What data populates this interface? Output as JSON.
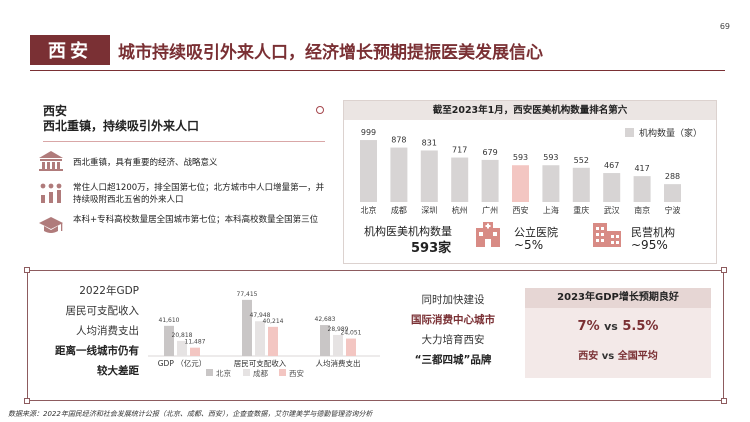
{
  "page_number": "69",
  "title_tag": "西安",
  "headline": "城市持续吸引外来人口，经济增长预期提振医美发展信心",
  "section": {
    "line1": "西安",
    "line2": "西北重镇，持续吸引外来人口"
  },
  "bullets": [
    {
      "icon": "building-icon",
      "text": "西北重镇，具有重要的经济、战略意义"
    },
    {
      "icon": "population-chart-icon",
      "text": "常住人口超1200万，排全国第七位；北方城市中人口增量第一，并持续吸附西北五省的外来人口"
    },
    {
      "icon": "graduation-cap-icon",
      "text": "本科+专科高校数量居全国城市第七位；本科高校数量全国第三位"
    }
  ],
  "colors": {
    "brand": "#7a3034",
    "bar_grey": "#d7d4d4",
    "bar_highlight": "#f3c6c2",
    "beijing": "#c9c6c6",
    "chengdu": "#e6e3e3",
    "xian": "#f3c6c2"
  },
  "rank_chart": {
    "header": "截至2023年1月，西安医美机构数量排名第六"
  },
  "stats": {
    "total_label": "机构医美机构数量",
    "total_value": "593家",
    "public_label": "公立医院",
    "public_value": "~5%",
    "private_label": "民营机构",
    "private_value": "~95%"
  },
  "left_labels": [
    "2022年GDP",
    "居民可支配收入",
    "人均消费支出",
    "距离一线城市仍有",
    "较大差距"
  ],
  "mid_labels": [
    "同时加快建设",
    "国际消费中心城市",
    "大力培育西安",
    "“三都四城”品牌"
  ],
  "gdp_card": {
    "title": "2023年GDP增长预期良好",
    "xian_pct": "7%",
    "vs": "vs",
    "national_pct": "5.5%",
    "xian_label": "西安",
    "national_label": "全国平均"
  },
  "source": "数据来源：2022年国民经济和社会发展统计公报（北京、成都、西安），企查查数据，艾尔建美学与德勤管理咨询分析",
  "chart_data": [
    {
      "type": "bar",
      "title": "截至2023年1月，西安医美机构数量排名第六",
      "categories": [
        "北京",
        "成都",
        "深圳",
        "杭州",
        "广州",
        "西安",
        "上海",
        "重庆",
        "武汉",
        "南京",
        "宁波"
      ],
      "series": [
        {
          "name": "机构数量（家）",
          "values": [
            999,
            878,
            831,
            717,
            679,
            593,
            593,
            552,
            467,
            417,
            288
          ]
        }
      ],
      "highlight": "西安",
      "ylim": [
        0,
        1000
      ]
    },
    {
      "type": "bar",
      "categories": [
        "GDP （亿元）",
        "居民可支配收入",
        "人均消费支出"
      ],
      "series": [
        {
          "name": "北京",
          "values": [
            41610,
            77415,
            42683
          ]
        },
        {
          "name": "成都",
          "values": [
            20818,
            47948,
            28989
          ]
        },
        {
          "name": "西安",
          "values": [
            11487,
            40214,
            24051
          ]
        }
      ],
      "value_labels": [
        [
          "41,610",
          "77,415",
          "42,683"
        ],
        [
          "20,818",
          "47,948",
          "28,989"
        ],
        [
          "11,487",
          "40,214",
          "24,051"
        ]
      ],
      "ylim": [
        0,
        80000
      ]
    }
  ]
}
